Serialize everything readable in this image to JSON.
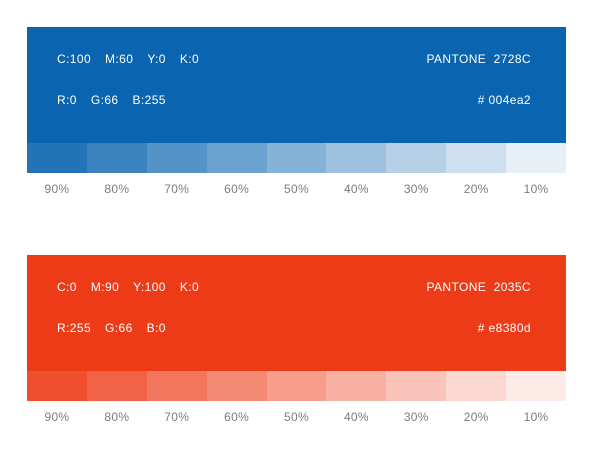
{
  "page": {
    "background": "#ffffff",
    "label_color": "#7b7c80"
  },
  "swatches": [
    {
      "id": "blue",
      "base_color": "#0a64af",
      "cmyk": {
        "c": "C:100",
        "m": "M:60",
        "y": "Y:0",
        "k": "K:0"
      },
      "rgb": {
        "r": "R:0",
        "g": "G:66",
        "b": "B:255"
      },
      "pantone": "PANTONE  2728C",
      "hex_label": "# 004ea2",
      "tints": [
        {
          "label": "90%",
          "color": "#2374b7"
        },
        {
          "label": "80%",
          "color": "#3b83bf"
        },
        {
          "label": "70%",
          "color": "#5493c7"
        },
        {
          "label": "60%",
          "color": "#6ca2cf"
        },
        {
          "label": "50%",
          "color": "#85b2d7"
        },
        {
          "label": "40%",
          "color": "#9dc1df"
        },
        {
          "label": "30%",
          "color": "#b6d1e7"
        },
        {
          "label": "20%",
          "color": "#cee0ef"
        },
        {
          "label": "10%",
          "color": "#e7f0f7"
        }
      ]
    },
    {
      "id": "red",
      "base_color": "#ed3b18",
      "cmyk": {
        "c": "C:0",
        "m": "M:90",
        "y": "Y:100",
        "k": "K:0"
      },
      "rgb": {
        "r": "R:255",
        "g": "G:66",
        "b": "B:0"
      },
      "pantone": "PANTONE  2035C",
      "hex_label": "# e8380d",
      "tints": [
        {
          "label": "90%",
          "color": "#ef4f2f"
        },
        {
          "label": "80%",
          "color": "#f16246"
        },
        {
          "label": "70%",
          "color": "#f2765d"
        },
        {
          "label": "60%",
          "color": "#f48974"
        },
        {
          "label": "50%",
          "color": "#f69d8c"
        },
        {
          "label": "40%",
          "color": "#f8b1a3"
        },
        {
          "label": "30%",
          "color": "#fac4ba"
        },
        {
          "label": "20%",
          "color": "#fbd8d1"
        },
        {
          "label": "10%",
          "color": "#fdebe8"
        }
      ]
    }
  ]
}
